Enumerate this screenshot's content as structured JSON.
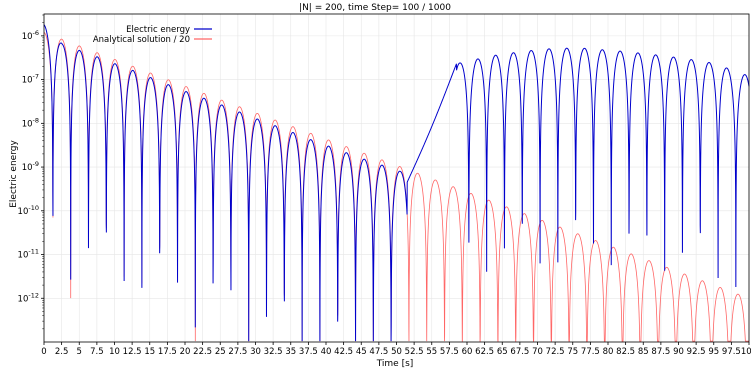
{
  "chart_data": {
    "type": "line",
    "title": "|N| = 200, time Step= 100 / 1000",
    "xlabel": "Time [s]",
    "ylabel": "Electric energy",
    "xlim": [
      0,
      100
    ],
    "ylim_log10": [
      -13,
      -5.5
    ],
    "yscale": "log",
    "grid": true,
    "legend_position": "upper-left",
    "x_ticks": [
      0,
      2.5,
      5,
      7.5,
      10,
      12.5,
      15,
      17.5,
      20,
      22.5,
      25,
      27.5,
      30,
      32.5,
      35,
      37.5,
      40,
      42.5,
      45,
      47.5,
      50,
      52.5,
      55,
      57.5,
      60,
      62.5,
      65,
      67.5,
      70,
      72.5,
      75,
      77.5,
      80,
      82.5,
      85,
      87.5,
      90,
      92.5,
      95,
      97.5,
      100
    ],
    "x_tick_labels": [
      "0",
      "2.5",
      "5",
      "7.5",
      "10",
      "12.5",
      "15",
      "17.5",
      "20",
      "22.5",
      "25",
      "27.5",
      "30",
      "32.5",
      "35",
      "37.5",
      "40",
      "42.5",
      "45",
      "47.5",
      "50",
      "52.5",
      "55",
      "57.5",
      "60",
      "62.5",
      "65",
      "67.5",
      "70",
      "72.5",
      "75",
      "77.5",
      "80",
      "82.5",
      "85",
      "87.5",
      "90",
      "92.5",
      "95",
      "97.5",
      "100"
    ],
    "y_ticks_log10": [
      -12,
      -11,
      -10,
      -9,
      -8,
      -7,
      -6
    ],
    "y_tick_labels": [
      {
        "base": "10",
        "exp": "-12"
      },
      {
        "base": "10",
        "exp": "-11"
      },
      {
        "base": "10",
        "exp": "-10"
      },
      {
        "base": "10",
        "exp": "-9"
      },
      {
        "base": "10",
        "exp": "-8"
      },
      {
        "base": "10",
        "exp": "-7"
      },
      {
        "base": "10",
        "exp": "-6"
      }
    ],
    "series": [
      {
        "name": "Electric energy",
        "color": "#0000cc",
        "style": "solid",
        "description_points": {
          "peaks": [
            {
              "x": 0,
              "y": 1.8e-06
            },
            {
              "x": 2.6,
              "y": 6.5e-07
            },
            {
              "x": 5.1,
              "y": 4.6e-07
            },
            {
              "x": 7.6,
              "y": 3.3e-07
            },
            {
              "x": 10.1,
              "y": 2.3e-07
            },
            {
              "x": 12.7,
              "y": 1.6e-07
            },
            {
              "x": 15.2,
              "y": 1.1e-07
            },
            {
              "x": 17.7,
              "y": 7.6e-08
            },
            {
              "x": 20.2,
              "y": 5.3e-08
            },
            {
              "x": 22.8,
              "y": 3.7e-08
            },
            {
              "x": 25.3,
              "y": 2.6e-08
            },
            {
              "x": 27.8,
              "y": 1.8e-08
            },
            {
              "x": 30.3,
              "y": 1.25e-08
            },
            {
              "x": 32.9,
              "y": 8.7e-09
            },
            {
              "x": 35.4,
              "y": 6.1e-09
            },
            {
              "x": 37.9,
              "y": 4.2e-09
            },
            {
              "x": 40.4,
              "y": 3e-09
            },
            {
              "x": 43.0,
              "y": 2.1e-09
            },
            {
              "x": 45.5,
              "y": 1.5e-09
            },
            {
              "x": 48.0,
              "y": 1.1e-09
            },
            {
              "x": 50.5,
              "y": 8e-10
            },
            {
              "x": 59.0,
              "y": 2.4e-07
            },
            {
              "x": 63.5,
              "y": 3.5e-07
            },
            {
              "x": 66.0,
              "y": 4e-07
            },
            {
              "x": 68.5,
              "y": 4.5e-07
            },
            {
              "x": 71.0,
              "y": 5e-07
            },
            {
              "x": 73.5,
              "y": 5.2e-07
            },
            {
              "x": 76.0,
              "y": 5.3e-07
            },
            {
              "x": 78.5,
              "y": 4.9e-07
            },
            {
              "x": 81.0,
              "y": 4.6e-07
            },
            {
              "x": 83.5,
              "y": 4.2e-07
            },
            {
              "x": 86.0,
              "y": 3.8e-07
            },
            {
              "x": 88.5,
              "y": 3.4e-07
            },
            {
              "x": 91.0,
              "y": 3e-07
            },
            {
              "x": 93.5,
              "y": 2.6e-07
            },
            {
              "x": 96.0,
              "y": 2.2e-07
            },
            {
              "x": 98.5,
              "y": 1.3e-07
            }
          ]
        }
      },
      {
        "name": "Analytical solution / 20",
        "color": "#ff6666",
        "style": "solid",
        "description_points": {
          "peaks_envelope": [
            {
              "x": 0,
              "y": 1.2e-06
            },
            {
              "x": 25,
              "y": 3.5e-08
            },
            {
              "x": 50,
              "y": 1.1e-09
            },
            {
              "x": 75,
              "y": 3.3e-11
            },
            {
              "x": 100,
              "y": 1e-12
            }
          ]
        }
      }
    ]
  }
}
